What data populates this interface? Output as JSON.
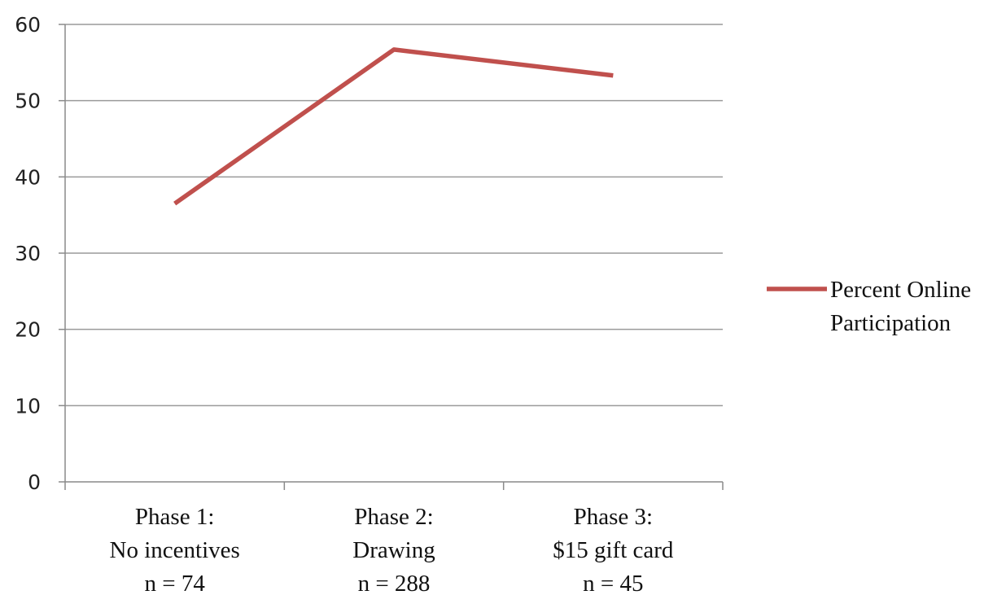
{
  "chart_data": {
    "type": "line",
    "categories": [
      [
        "Phase 1:",
        "No incentives",
        "n = 74"
      ],
      [
        "Phase 2:",
        "Drawing",
        "n = 288"
      ],
      [
        "Phase 3:",
        "$15 gift card",
        "n = 45"
      ]
    ],
    "series": [
      {
        "name": [
          "Percent Online",
          "Participation"
        ],
        "values": [
          36.5,
          56.7,
          53.3
        ],
        "color": "#c0504d"
      }
    ],
    "ylim": [
      0,
      60
    ],
    "yticks": [
      0,
      10,
      20,
      30,
      40,
      50,
      60
    ],
    "grid": true,
    "legend": "right",
    "title": "",
    "xlabel": "",
    "ylabel": ""
  }
}
